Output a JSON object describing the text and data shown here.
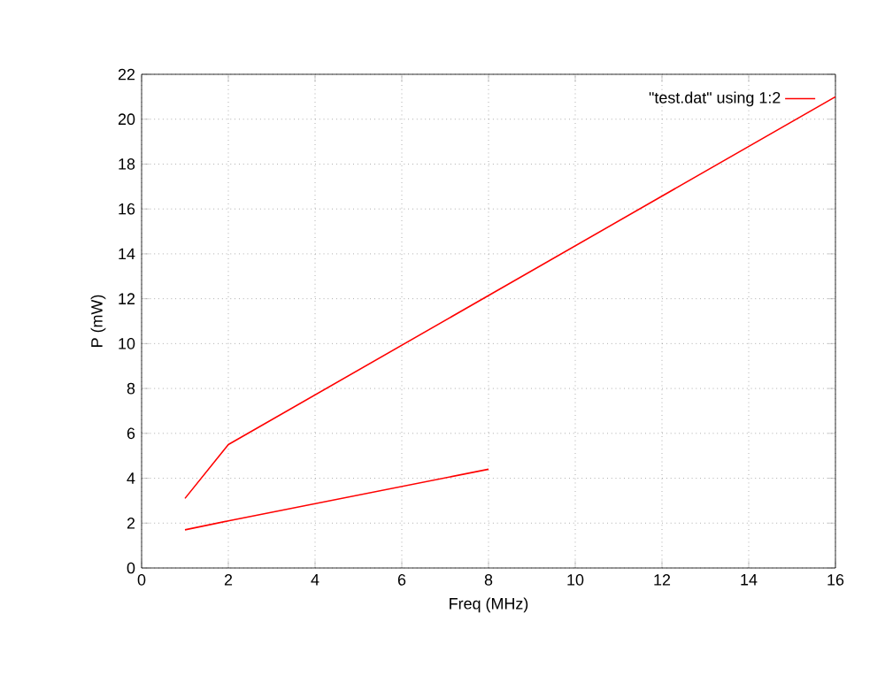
{
  "chart_data": {
    "type": "line",
    "xlabel": "Freq (MHz)",
    "ylabel": "P (mW)",
    "series": [
      {
        "name": "\"test.dat\" using 1:2",
        "color": "#ff0000",
        "x": [
          1,
          2,
          8
        ],
        "values": [
          1.7,
          2.1,
          4.4
        ]
      },
      {
        "color": "#ff0000",
        "x": [
          1,
          2,
          16
        ],
        "values": [
          3.1,
          5.5,
          21
        ]
      }
    ],
    "xlim": [
      0,
      16
    ],
    "ylim": [
      0,
      22
    ],
    "xticks": [
      0,
      2,
      4,
      6,
      8,
      10,
      12,
      14,
      16
    ],
    "yticks": [
      0,
      2,
      4,
      6,
      8,
      10,
      12,
      14,
      16,
      18,
      20,
      22
    ],
    "grid": true,
    "legend": "top right",
    "marker": "none",
    "line_style": "solid"
  }
}
